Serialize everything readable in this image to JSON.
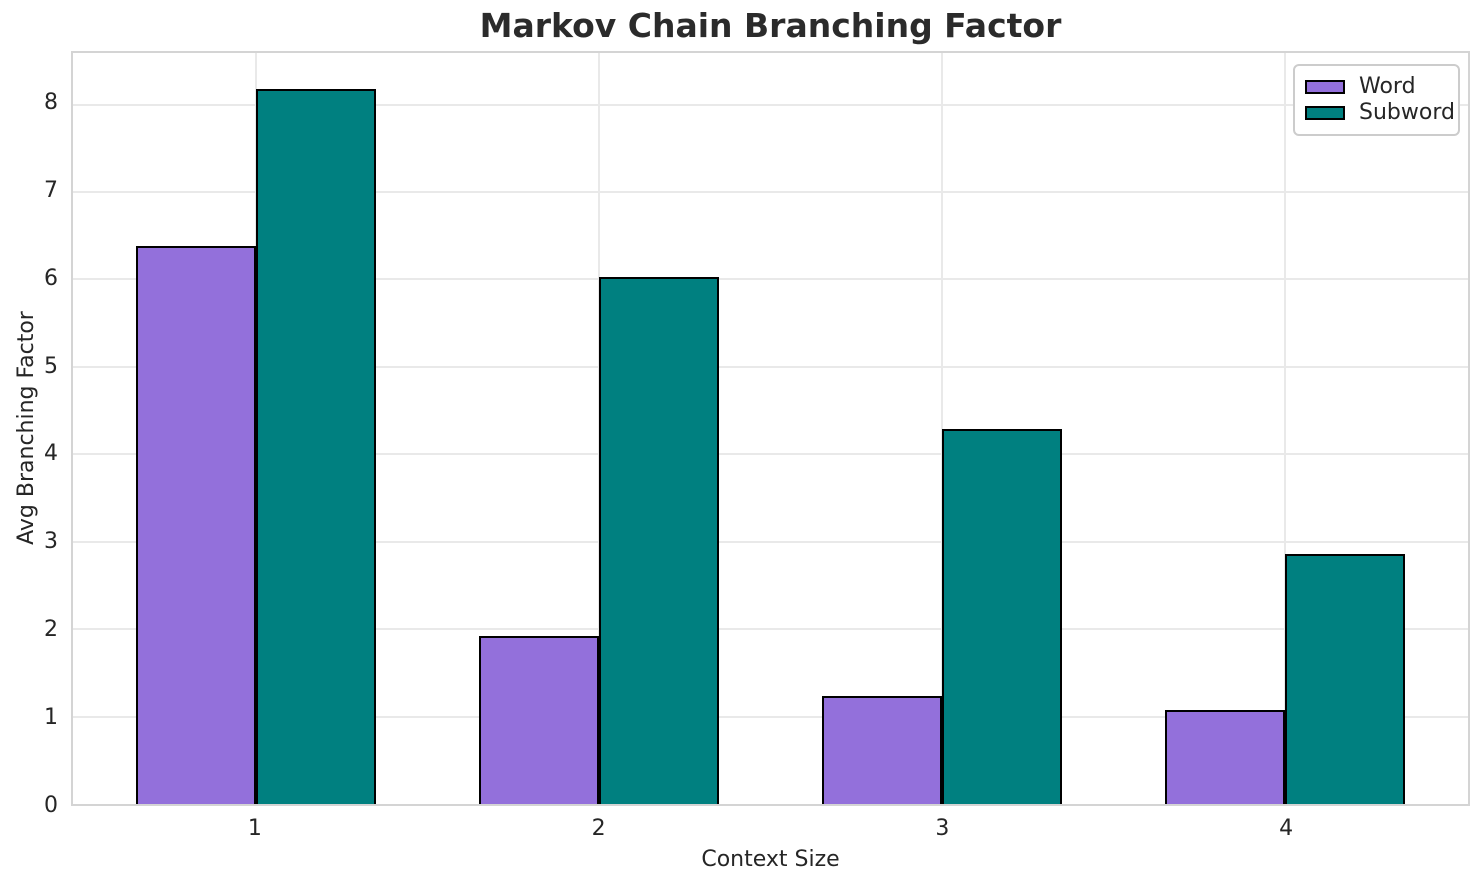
{
  "title": "Markov Chain Branching Factor",
  "chart_data": {
    "type": "bar",
    "title": "Markov Chain Branching Factor",
    "xlabel": "Context Size",
    "ylabel": "Avg Branching Factor",
    "categories": [
      1,
      2,
      3,
      4
    ],
    "series": [
      {
        "name": "Word",
        "color": "#9370DB",
        "values": [
          6.38,
          1.92,
          1.24,
          1.07
        ]
      },
      {
        "name": "Subword",
        "color": "#008080",
        "values": [
          8.18,
          6.03,
          4.29,
          2.86
        ]
      }
    ],
    "yticks": [
      0,
      1,
      2,
      3,
      4,
      5,
      6,
      7,
      8
    ],
    "xlim": [
      0.465,
      4.535
    ],
    "ylim": [
      0,
      8.59
    ],
    "bar_width": 0.35,
    "bar_edge_color": "#000000",
    "grid": true,
    "gridline_color": "#e9e9e9",
    "legend_position": "upper right",
    "background_color": "#ffffff",
    "text_color": "#262626"
  }
}
